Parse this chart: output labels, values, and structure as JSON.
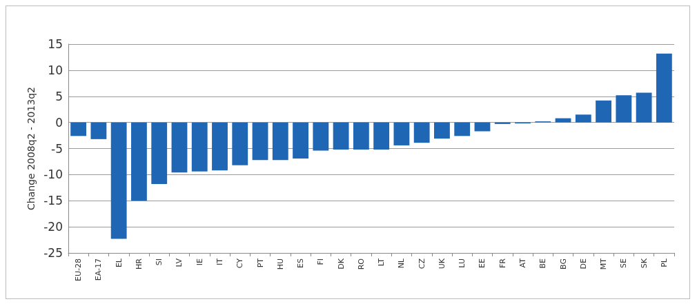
{
  "chart_data": {
    "type": "bar",
    "ylabel": "Change 2008q2 - 2013q2",
    "categories": [
      "EU-28",
      "EA-17",
      "EL",
      "HR",
      "SI",
      "LV",
      "IE",
      "IT",
      "CY",
      "PT",
      "HU",
      "ES",
      "FI",
      "DK",
      "RO",
      "LT",
      "NL",
      "CZ",
      "UK",
      "LU",
      "EE",
      "FR",
      "AT",
      "BE",
      "BG",
      "DE",
      "MT",
      "SE",
      "SK",
      "PL"
    ],
    "values": [
      -2.6,
      -3.2,
      -22.3,
      -15,
      -11.8,
      -9.6,
      -9.4,
      -9.2,
      -8.2,
      -7.2,
      -7.2,
      -6.9,
      -5.4,
      -5.2,
      -5.2,
      -5.2,
      -4.4,
      -3.9,
      -3.1,
      -2.6,
      -1.7,
      -0.3,
      -0.2,
      0.2,
      0.8,
      1.5,
      4.2,
      5.2,
      5.7,
      13.2
    ],
    "color": "#1f66b5",
    "ylim": [
      -25,
      15
    ],
    "yticks": [
      -25,
      -20,
      -15,
      -10,
      -5,
      0,
      5,
      10,
      15
    ],
    "grid": "y"
  }
}
